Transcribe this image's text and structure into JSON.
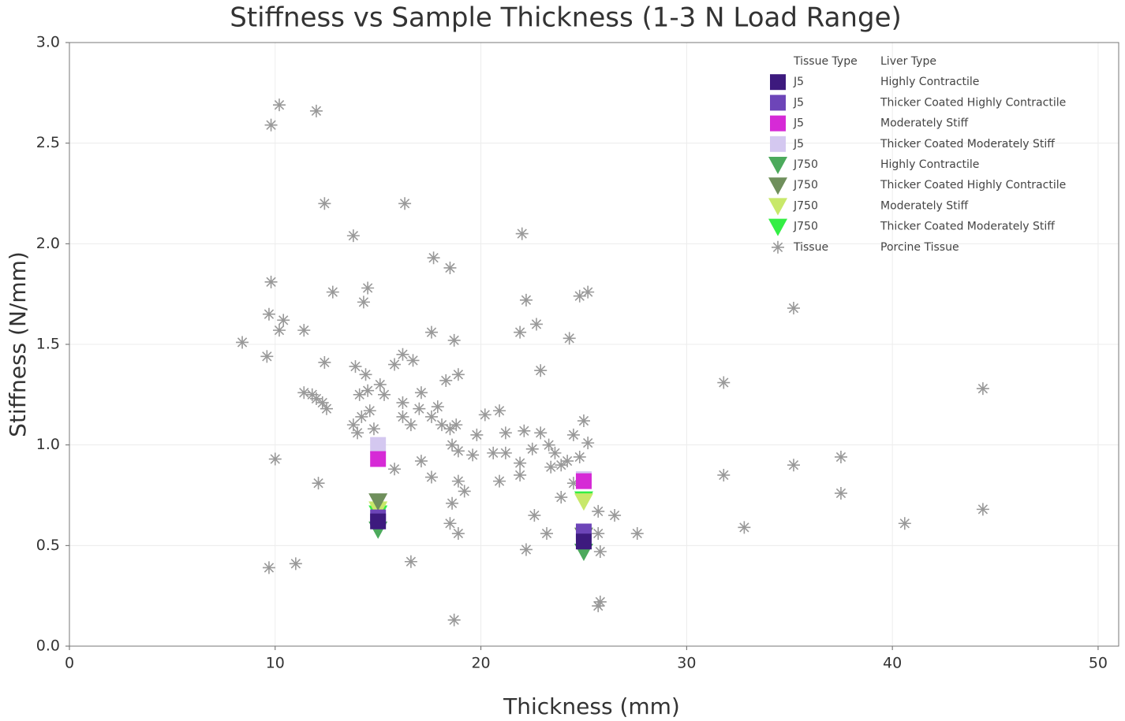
{
  "chart_data": {
    "type": "scatter",
    "title": "Stiffness vs Sample Thickness (1-3 N Load Range)",
    "x_label": "Thickness (mm)",
    "y_label": "Stiffness (N/mm)",
    "xlim": [
      0,
      51
    ],
    "ylim": [
      0,
      3
    ],
    "xticks": [
      0,
      10,
      20,
      30,
      40,
      50
    ],
    "yticks": [
      {
        "value": 0,
        "label": "0.0"
      },
      0.5,
      {
        "value": 1,
        "label": "1.0"
      },
      1.5,
      {
        "value": 2,
        "label": "2.0"
      },
      2.5,
      {
        "value": 3,
        "label": "3.0"
      }
    ],
    "grid": true,
    "legend": "upper right",
    "legend_headers": [
      "Tissue Type",
      "Liver Type"
    ],
    "series": [
      {
        "name": "J5",
        "liver_type": "Highly Contractile",
        "color": "#3d1a7e",
        "marker": "square",
        "x": [
          15,
          25
        ],
        "values": [
          0.62,
          0.52
        ]
      },
      {
        "name": "J5",
        "liver_type": "Thicker Coated Highly Contractile",
        "color": "#6d45b8",
        "marker": "square",
        "x": [
          15,
          25
        ],
        "values": [
          0.64,
          0.57
        ]
      },
      {
        "name": "J5",
        "liver_type": "Moderately Stiff",
        "color": "#d62ad6",
        "marker": "square",
        "x": [
          15,
          25
        ],
        "values": [
          0.93,
          0.82
        ]
      },
      {
        "name": "J5",
        "liver_type": "Thicker Coated Moderately Stiff",
        "color": "#d4c8f0",
        "marker": "square",
        "x": [
          15,
          25
        ],
        "values": [
          1.0,
          0.83
        ]
      },
      {
        "name": "J750",
        "liver_type": "Highly Contractile",
        "color": "#4caa5c",
        "marker": "triangle-down",
        "x": [
          15,
          25
        ],
        "values": [
          0.58,
          0.47
        ]
      },
      {
        "name": "J750",
        "liver_type": "Thicker Coated Highly Contractile",
        "color": "#6f8f5c",
        "marker": "triangle-down",
        "x": [
          15,
          25
        ],
        "values": [
          0.72,
          0.55
        ]
      },
      {
        "name": "J750",
        "liver_type": "Moderately Stiff",
        "color": "#c8e86a",
        "marker": "triangle-down",
        "x": [
          15,
          25
        ],
        "values": [
          0.68,
          0.72
        ]
      },
      {
        "name": "J750",
        "liver_type": "Thicker Coated Moderately Stiff",
        "color": "#33ee44",
        "marker": "triangle-down",
        "x": [
          15,
          25
        ],
        "values": [
          0.66,
          0.73
        ]
      },
      {
        "name": "Tissue",
        "liver_type": "Porcine Tissue",
        "color": "#999999",
        "marker": "asterisk",
        "x": [
          9.8,
          10.2,
          12.0,
          12.4,
          16.3,
          13.8,
          22.0,
          17.7,
          18.5,
          9.8,
          14.5,
          12.8,
          14.3,
          22.2,
          24.8,
          25.2,
          35.2,
          9.7,
          10.4,
          10.2,
          11.4,
          8.4,
          17.6,
          21.9,
          22.7,
          24.3,
          18.7,
          9.6,
          12.4,
          13.9,
          14.4,
          16.2,
          15.8,
          16.7,
          22.9,
          18.9,
          18.3,
          31.8,
          44.4,
          11.4,
          11.8,
          12.0,
          12.3,
          12.5,
          14.1,
          14.5,
          15.1,
          15.3,
          17.1,
          16.2,
          17.9,
          14.6,
          13.8,
          14.2,
          14.0,
          14.8,
          16.2,
          16.6,
          17.0,
          17.6,
          18.1,
          18.5,
          18.8,
          20.2,
          20.9,
          21.2,
          22.1,
          22.9,
          24.5,
          25.0,
          25.2,
          19.8,
          18.6,
          18.9,
          19.6,
          20.6,
          21.2,
          21.9,
          22.5,
          23.3,
          23.6,
          23.9,
          24.2,
          24.8,
          23.4,
          10.0,
          17.1,
          15.8,
          17.6,
          20.9,
          21.9,
          18.9,
          19.2,
          12.1,
          24.5,
          23.9,
          18.6,
          22.6,
          25.7,
          26.5,
          18.5,
          18.9,
          23.2,
          25.7,
          27.6,
          31.8,
          35.2,
          37.5,
          37.5,
          32.8,
          40.6,
          44.4,
          22.2,
          25.8,
          9.7,
          11.0,
          16.6,
          25.7,
          25.8,
          18.7
        ],
        "values": [
          2.59,
          2.69,
          2.66,
          2.2,
          2.2,
          2.04,
          2.05,
          1.93,
          1.88,
          1.81,
          1.78,
          1.76,
          1.71,
          1.72,
          1.74,
          1.76,
          1.68,
          1.65,
          1.62,
          1.57,
          1.57,
          1.51,
          1.56,
          1.56,
          1.6,
          1.53,
          1.52,
          1.44,
          1.41,
          1.39,
          1.35,
          1.45,
          1.4,
          1.42,
          1.37,
          1.35,
          1.32,
          1.31,
          1.28,
          1.26,
          1.25,
          1.23,
          1.21,
          1.18,
          1.25,
          1.27,
          1.3,
          1.25,
          1.26,
          1.21,
          1.19,
          1.17,
          1.1,
          1.14,
          1.06,
          1.08,
          1.14,
          1.1,
          1.18,
          1.14,
          1.1,
          1.08,
          1.1,
          1.15,
          1.17,
          1.06,
          1.07,
          1.06,
          1.05,
          1.12,
          1.01,
          1.05,
          1.0,
          0.97,
          0.95,
          0.96,
          0.96,
          0.91,
          0.98,
          1.0,
          0.96,
          0.9,
          0.92,
          0.94,
          0.89,
          0.93,
          0.92,
          0.88,
          0.84,
          0.82,
          0.85,
          0.82,
          0.77,
          0.81,
          0.81,
          0.74,
          0.71,
          0.65,
          0.67,
          0.65,
          0.61,
          0.56,
          0.56,
          0.56,
          0.56,
          0.85,
          0.9,
          0.94,
          0.76,
          0.59,
          0.61,
          0.68,
          0.48,
          0.47,
          0.39,
          0.41,
          0.42,
          0.2,
          0.22,
          0.13
        ]
      }
    ]
  }
}
